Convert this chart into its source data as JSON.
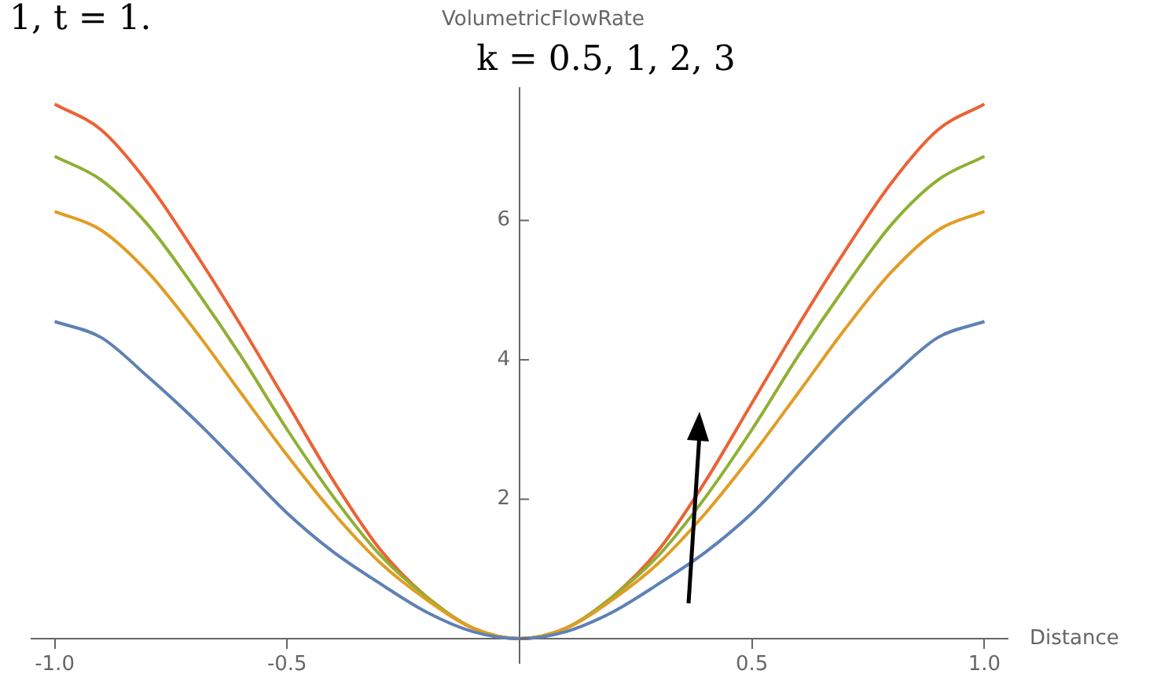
{
  "chart_data": {
    "type": "line",
    "xlabel": "Distance",
    "ylabel": "VolumetricFlowRate",
    "annotations": [
      "1, t = 1.",
      "k = 0.5, 1, 2, 3"
    ],
    "x": [
      -1,
      -0.9,
      -0.8,
      -0.7,
      -0.6,
      -0.5,
      -0.4,
      -0.3,
      -0.2,
      -0.1,
      0,
      0.1,
      0.2,
      0.3,
      0.4,
      0.5,
      0.6,
      0.7,
      0.8,
      0.9,
      1
    ],
    "series": [
      {
        "color": "#5e81b5",
        "values": [
          4.55,
          4.32,
          3.76,
          3.15,
          2.48,
          1.8,
          1.24,
          0.79,
          0.38,
          0.1,
          0,
          0.1,
          0.38,
          0.79,
          1.24,
          1.8,
          2.48,
          3.15,
          3.76,
          4.32,
          4.55
        ]
      },
      {
        "color": "#e19c24",
        "values": [
          6.13,
          5.86,
          5.26,
          4.44,
          3.53,
          2.63,
          1.8,
          1.09,
          0.56,
          0.15,
          0,
          0.15,
          0.56,
          1.09,
          1.8,
          2.63,
          3.53,
          4.44,
          5.26,
          5.86,
          6.13
        ]
      },
      {
        "color": "#8fb032",
        "values": [
          6.92,
          6.58,
          5.94,
          5.04,
          4.06,
          3.0,
          2.03,
          1.2,
          0.6,
          0.15,
          0,
          0.15,
          0.6,
          1.2,
          2.03,
          3.0,
          4.06,
          5.04,
          5.94,
          6.58,
          6.92
        ]
      },
      {
        "color": "#eb6235",
        "values": [
          7.67,
          7.3,
          6.54,
          5.56,
          4.5,
          3.38,
          2.26,
          1.28,
          0.6,
          0.15,
          0,
          0.15,
          0.6,
          1.28,
          2.26,
          3.38,
          4.5,
          5.56,
          6.54,
          7.3,
          7.67
        ]
      }
    ],
    "xlim": [
      -1.05,
      1.05
    ],
    "ylim": [
      -0.35,
      7.9
    ],
    "xticks": [
      {
        "value": -1,
        "label": "-1.0"
      },
      {
        "value": -0.5,
        "label": "-0.5"
      },
      {
        "value": 0,
        "label": null
      },
      {
        "value": 0.5,
        "label": "0.5"
      },
      {
        "value": 1,
        "label": "1.0"
      }
    ],
    "yticks": [
      {
        "value": 0,
        "label": null
      },
      2,
      4,
      6
    ],
    "grid": false,
    "legend": false,
    "marker": "none",
    "line_style": "solid"
  }
}
